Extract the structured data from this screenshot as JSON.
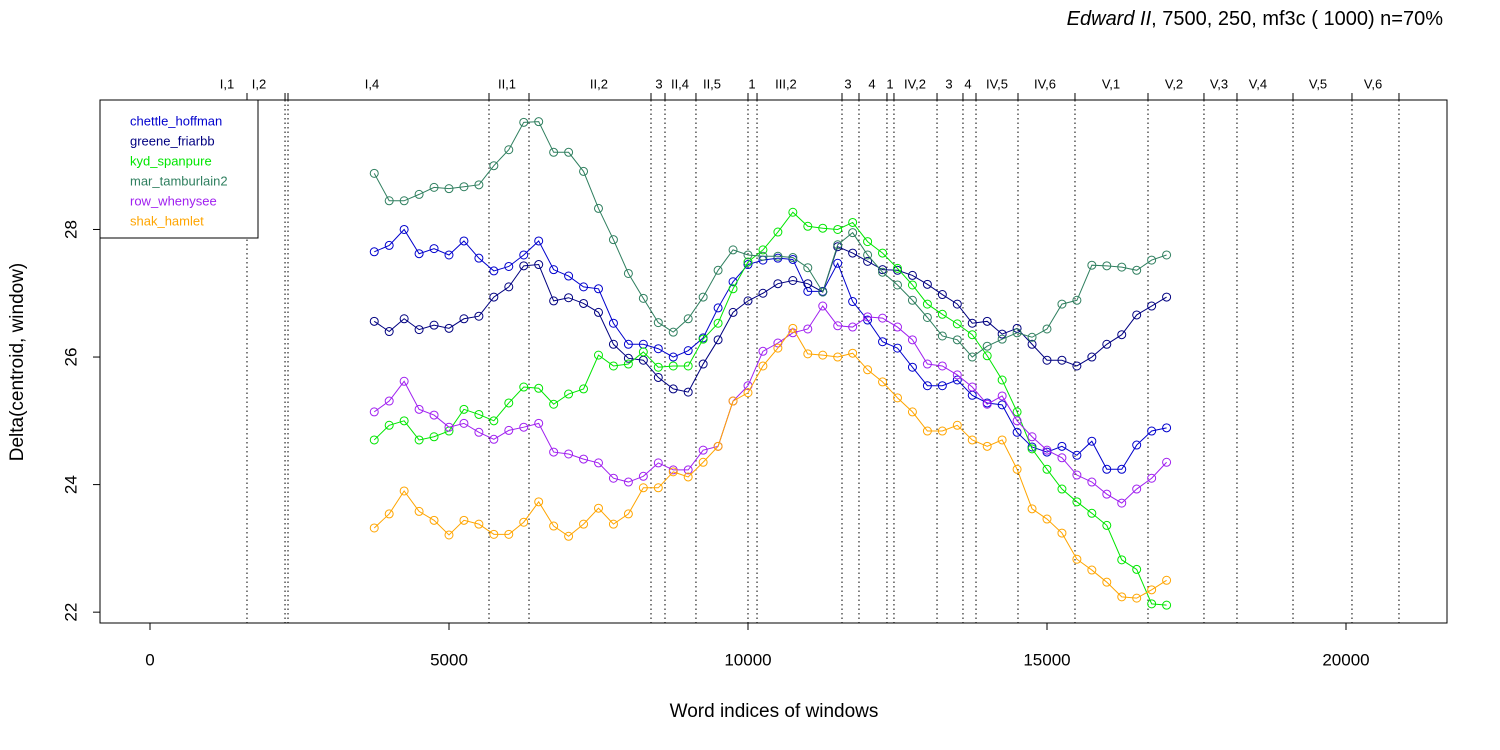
{
  "chart_data": {
    "type": "line",
    "title_italic": "Edward II",
    "title_rest": ", 7500, 250, mf3c ( 1000)   n=70%",
    "x_label": "Word indices of windows",
    "y_label": "Delta(centroid, window)",
    "xlim": [
      -836,
      21689
    ],
    "ylim": [
      21.83,
      30.03
    ],
    "xticks": [
      0,
      5000,
      10000,
      15000,
      20000
    ],
    "yticks": [
      22,
      24,
      26,
      28
    ],
    "legend": "topleft",
    "x": [
      3750,
      4000,
      4250,
      4500,
      4750,
      5000,
      5250,
      5500,
      5750,
      6000,
      6250,
      6500,
      6750,
      7000,
      7250,
      7500,
      7750,
      8000,
      8250,
      8500,
      8750,
      9000,
      9250,
      9500,
      9750,
      10000,
      10250,
      10500,
      10750,
      11000,
      11250,
      11500,
      11750,
      12000,
      12250,
      12500,
      12750,
      13000,
      13250,
      13500,
      13750,
      14000,
      14250,
      14500,
      14750,
      15000,
      15250,
      15500,
      15750,
      16000,
      16250,
      16500,
      16750,
      17000
    ],
    "series": [
      {
        "name": "chettle_hoffman",
        "color": "#0000CD",
        "values": [
          27.65,
          27.75,
          28.0,
          27.62,
          27.7,
          27.6,
          27.82,
          27.55,
          27.35,
          27.42,
          27.6,
          27.82,
          27.37,
          27.27,
          27.1,
          27.07,
          26.53,
          26.2,
          26.2,
          26.13,
          26.0,
          26.1,
          26.3,
          26.77,
          27.18,
          27.45,
          27.52,
          27.55,
          27.53,
          27.03,
          27.03,
          27.47,
          26.87,
          26.58,
          26.24,
          26.14,
          25.84,
          25.55,
          25.55,
          25.64,
          25.4,
          25.28,
          25.25,
          24.82,
          24.59,
          24.51,
          24.6,
          24.46,
          24.68,
          24.24,
          24.24,
          24.62,
          24.84,
          24.89
        ]
      },
      {
        "name": "greene_friarbb",
        "color": "#000080",
        "values": [
          26.56,
          26.4,
          26.6,
          26.43,
          26.5,
          26.45,
          26.6,
          26.64,
          26.94,
          27.1,
          27.43,
          27.45,
          26.88,
          26.93,
          26.84,
          26.7,
          26.2,
          25.98,
          25.95,
          25.68,
          25.5,
          25.45,
          25.89,
          26.27,
          26.7,
          26.88,
          27.0,
          27.15,
          27.2,
          27.15,
          27.02,
          27.73,
          27.63,
          27.5,
          27.37,
          27.36,
          27.28,
          27.14,
          26.98,
          26.83,
          26.53,
          26.56,
          26.36,
          26.45,
          26.2,
          25.95,
          25.95,
          25.86,
          26.0,
          26.2,
          26.35,
          26.66,
          26.8,
          26.94
        ]
      },
      {
        "name": "kyd_spanpure",
        "color": "#00E600",
        "values": [
          24.7,
          24.93,
          25.0,
          24.7,
          24.75,
          24.84,
          25.18,
          25.1,
          25.0,
          25.28,
          25.53,
          25.51,
          25.26,
          25.42,
          25.5,
          26.03,
          25.86,
          25.89,
          26.08,
          25.84,
          25.86,
          25.86,
          26.28,
          26.53,
          27.07,
          27.49,
          27.68,
          27.96,
          28.27,
          28.05,
          28.02,
          28.0,
          28.11,
          27.81,
          27.63,
          27.39,
          27.13,
          26.83,
          26.67,
          26.52,
          26.35,
          26.02,
          25.64,
          25.14,
          24.56,
          24.24,
          23.93,
          23.73,
          23.55,
          23.36,
          22.82,
          22.67,
          22.13,
          22.11
        ]
      },
      {
        "name": "mar_tamburlain2",
        "color": "#2F7F5F",
        "values": [
          28.88,
          28.45,
          28.45,
          28.55,
          28.66,
          28.64,
          28.67,
          28.7,
          29.0,
          29.25,
          29.68,
          29.69,
          29.21,
          29.21,
          28.91,
          28.33,
          27.84,
          27.31,
          26.92,
          26.54,
          26.39,
          26.6,
          26.94,
          27.36,
          27.68,
          27.6,
          27.58,
          27.58,
          27.56,
          27.4,
          27.02,
          27.76,
          27.95,
          27.6,
          27.33,
          27.13,
          26.89,
          26.62,
          26.33,
          26.27,
          26.0,
          26.17,
          26.28,
          26.38,
          26.31,
          26.44,
          26.83,
          26.89,
          27.44,
          27.43,
          27.41,
          27.36,
          27.52,
          27.6
        ]
      },
      {
        "name": "row_whenysee",
        "color": "#A020F0",
        "values": [
          25.14,
          25.31,
          25.62,
          25.18,
          25.09,
          24.9,
          24.96,
          24.82,
          24.71,
          24.85,
          24.9,
          24.96,
          24.51,
          24.48,
          24.4,
          24.34,
          24.1,
          24.04,
          24.13,
          24.34,
          24.23,
          24.23,
          24.54,
          24.6,
          25.31,
          25.55,
          26.09,
          26.22,
          26.38,
          26.44,
          26.8,
          26.49,
          26.47,
          26.63,
          26.61,
          26.47,
          26.27,
          25.89,
          25.86,
          25.72,
          25.53,
          25.26,
          25.39,
          25.0,
          24.75,
          24.54,
          24.42,
          24.15,
          24.04,
          23.85,
          23.71,
          23.93,
          24.1,
          24.35
        ]
      },
      {
        "name": "shak_hamlet",
        "color": "#FFA500",
        "values": [
          23.32,
          23.54,
          23.9,
          23.58,
          23.44,
          23.21,
          23.44,
          23.38,
          23.22,
          23.22,
          23.41,
          23.73,
          23.35,
          23.19,
          23.38,
          23.63,
          23.38,
          23.54,
          23.95,
          23.95,
          24.2,
          24.12,
          24.35,
          24.6,
          25.31,
          25.44,
          25.86,
          26.14,
          26.45,
          26.05,
          26.03,
          26.0,
          26.06,
          25.8,
          25.61,
          25.36,
          25.14,
          24.84,
          24.84,
          24.93,
          24.7,
          24.6,
          24.7,
          24.24,
          23.62,
          23.46,
          23.24,
          22.83,
          22.66,
          22.47,
          22.24,
          22.22,
          22.35,
          22.5
        ]
      }
    ],
    "scenes": {
      "boundaries": [
        1622,
        2258,
        2308,
        5669,
        6338,
        8378,
        8612,
        9130,
        10000,
        10151,
        11572,
        11856,
        12324,
        12441,
        13161,
        13595,
        13813,
        14515,
        15468,
        16689,
        17625,
        18177,
        19114,
        20100,
        20886
      ],
      "labels": [
        "I,1",
        "I,2",
        "I,4",
        "II,1",
        "II,2",
        "3",
        "II,4",
        "II,5",
        "1",
        "III,2",
        "3",
        "4",
        "1",
        "IV,2",
        "3",
        "4",
        "IV,5",
        "IV,6",
        "V,1",
        "V,2",
        "V,3",
        "V,4",
        "V,5",
        "V,6"
      ],
      "label_x": [
        1288,
        1823,
        3712,
        5970,
        7508,
        8512,
        8863,
        9398,
        10067,
        10635,
        11672,
        12074,
        12375,
        12793,
        13361,
        13679,
        14164,
        14967,
        16070,
        17124,
        17876,
        18528,
        19532,
        20452
      ]
    }
  }
}
